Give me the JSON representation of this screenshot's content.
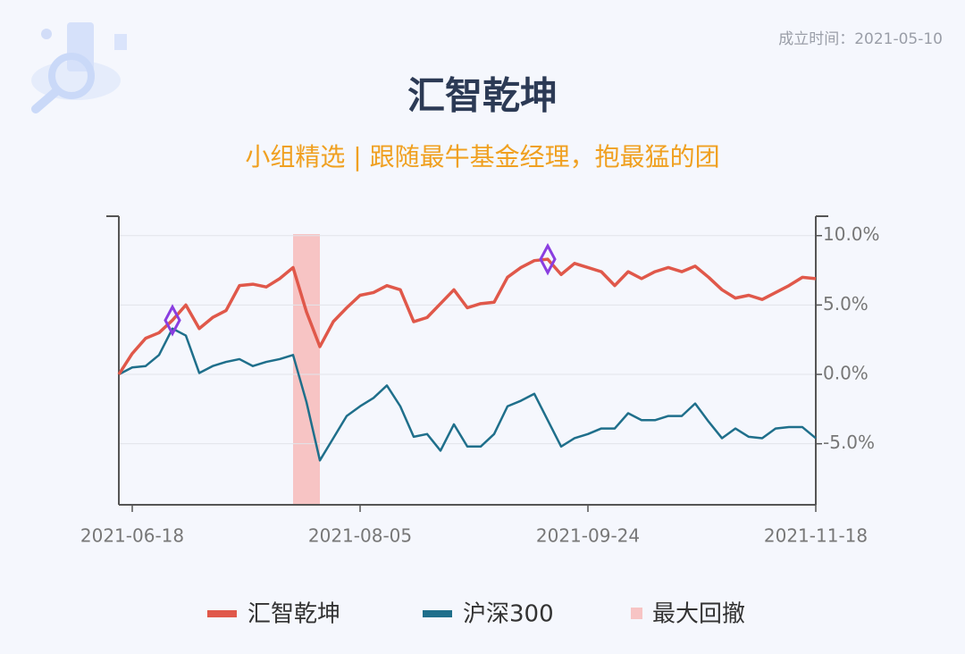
{
  "established": "成立时间：2021-05-10",
  "chart_data": {
    "type": "line",
    "title": "汇智乾坤",
    "subtitle": "小组精选 | 跟随最牛基金经理，抱最猛的团",
    "categories": [
      null,
      "2021-06-18",
      null,
      null,
      null,
      null,
      null,
      null,
      null,
      null,
      null,
      null,
      null,
      null,
      null,
      null,
      null,
      null,
      "2021-08-05",
      null,
      null,
      null,
      null,
      null,
      null,
      null,
      null,
      null,
      null,
      null,
      null,
      null,
      null,
      null,
      null,
      "2021-09-24",
      null,
      null,
      null,
      null,
      null,
      null,
      null,
      null,
      null,
      null,
      null,
      null,
      null,
      null,
      null,
      null,
      "2021-11-18"
    ],
    "series": [
      {
        "name": "汇智乾坤",
        "color": "#e0584a",
        "values": [
          0,
          1.5,
          2.6,
          3.0,
          3.9,
          5.0,
          3.3,
          4.1,
          4.6,
          6.4,
          6.5,
          6.3,
          6.9,
          7.7,
          4.5,
          2.0,
          3.8,
          4.8,
          5.7,
          5.9,
          6.4,
          6.1,
          3.8,
          4.1,
          5.1,
          6.1,
          4.8,
          5.1,
          5.2,
          7.0,
          7.7,
          8.2,
          8.3,
          7.2,
          8.0,
          7.7,
          7.4,
          6.4,
          7.4,
          6.9,
          7.4,
          7.7,
          7.4,
          7.8,
          7.0,
          6.1,
          5.5,
          5.7,
          5.4,
          5.9,
          6.4,
          7.0,
          6.9
        ]
      },
      {
        "name": "沪深300",
        "color": "#1f6f8b",
        "values": [
          0,
          0.5,
          0.6,
          1.4,
          3.3,
          2.8,
          0.1,
          0.6,
          0.9,
          1.1,
          0.6,
          0.9,
          1.1,
          1.4,
          -2.0,
          -6.2,
          -4.6,
          -3.0,
          -2.3,
          -1.7,
          -0.8,
          -2.3,
          -4.5,
          -4.3,
          -5.5,
          -3.6,
          -5.2,
          -5.2,
          -4.3,
          -2.3,
          -1.9,
          -1.4,
          -3.3,
          -5.2,
          -4.6,
          -4.3,
          -3.9,
          -3.9,
          -2.8,
          -3.3,
          -3.3,
          -3.0,
          -3.0,
          -2.1,
          -3.4,
          -4.6,
          -3.9,
          -4.5,
          -4.6,
          -3.9,
          -3.8,
          -3.8,
          -4.6
        ]
      }
    ],
    "drawdown": {
      "name": "最大回撤",
      "color": "#f7c4c4",
      "from": 13,
      "to": 15
    },
    "highlights": [
      4,
      32
    ],
    "highlight_color": "#8a3ee0",
    "ylim": [
      -9.4,
      11.4
    ],
    "yticks": [
      {
        "value": -5,
        "label": "-5.0%"
      },
      {
        "value": 0,
        "label": "0.0%"
      },
      {
        "value": 5,
        "label": "5.0%"
      },
      {
        "value": 10,
        "label": "10.0%"
      }
    ],
    "grid": true
  }
}
